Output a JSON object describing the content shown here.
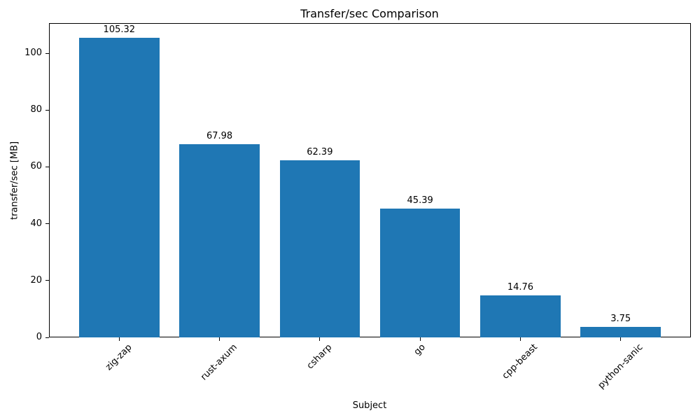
{
  "chart_data": {
    "type": "bar",
    "title": "Transfer/sec Comparison",
    "xlabel": "Subject",
    "ylabel": "transfer/sec [MB]",
    "categories": [
      "zig-zap",
      "rust-axum",
      "csharp",
      "go",
      "cpp-beast",
      "python-sanic"
    ],
    "values": [
      105.32,
      67.98,
      62.39,
      45.39,
      14.76,
      3.75
    ],
    "bar_labels": [
      "105.32",
      "67.98",
      "62.39",
      "45.39",
      "14.76",
      "3.75"
    ],
    "yticks": [
      0,
      20,
      40,
      60,
      80,
      100
    ],
    "ylim": [
      0,
      110.6
    ],
    "bar_color": "#1f77b4",
    "grid": false,
    "legend": null,
    "tick_rotation": 45
  }
}
